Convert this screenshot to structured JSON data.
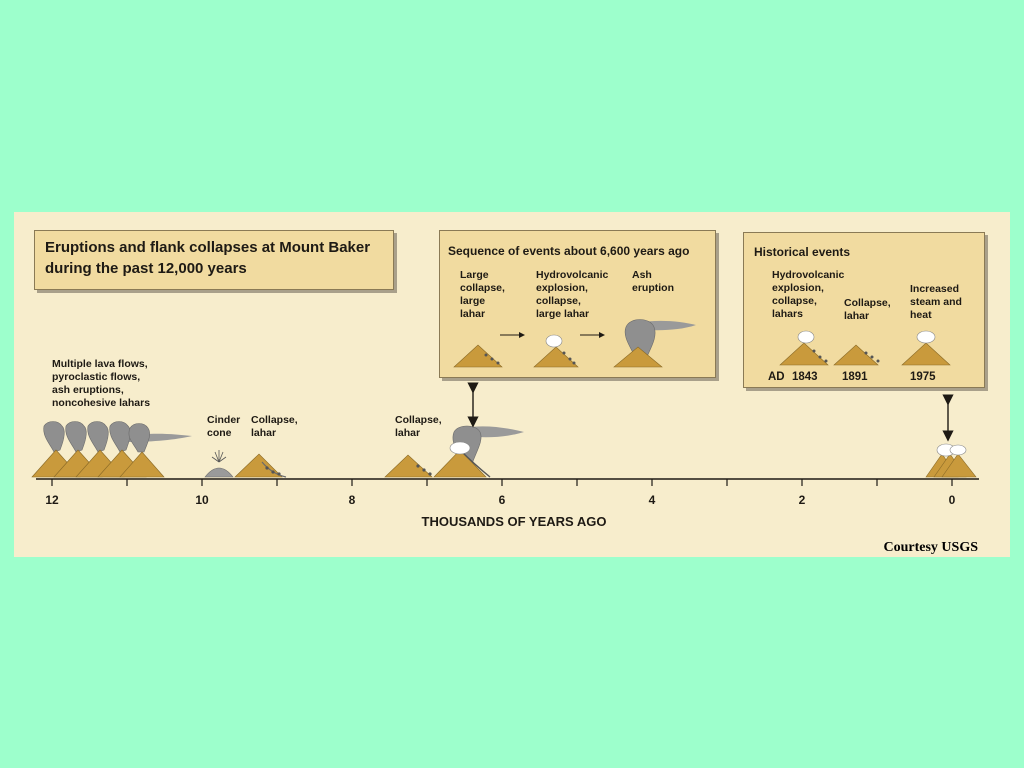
{
  "title_box": {
    "line1": "Eruptions and flank collapses at Mount Baker",
    "line2": "during the past 12,000 years"
  },
  "sequence_box": {
    "title": "Sequence of events about 6,600 years ago",
    "steps": [
      "Large\ncollapse,\nlarge\nlahar",
      "Hydrovolcanic\nexplosion,\ncollapse,\nlarge lahar",
      "Ash\neruption"
    ]
  },
  "historical_box": {
    "title": "Historical events",
    "events": [
      "Hydrovolcanic\nexplosion,\ncollapse,\nlahars",
      "Collapse,\nlahar",
      "Increased\nsteam and\nheat"
    ],
    "years": [
      "AD",
      "1843",
      "1891",
      "1975"
    ]
  },
  "timeline_labels": {
    "lava": "Multiple lava flows,\npyroclastic flows,\nash eruptions,\nnoncohesive lahars",
    "cinder": "Cinder\ncone",
    "collapse1": "Collapse,\nlahar",
    "collapse2": "Collapse,\nlahar"
  },
  "axis": {
    "title": "THOUSANDS OF YEARS AGO",
    "ticks": [
      "12",
      "10",
      "8",
      "6",
      "4",
      "2",
      "0"
    ]
  },
  "credit": "Courtesy USGS",
  "colors": {
    "background": "#9dffcc",
    "panel": "#f7edcc",
    "box": "#f1dba0",
    "volcano": "#c99a3c",
    "ash": "#8f8f8f"
  }
}
